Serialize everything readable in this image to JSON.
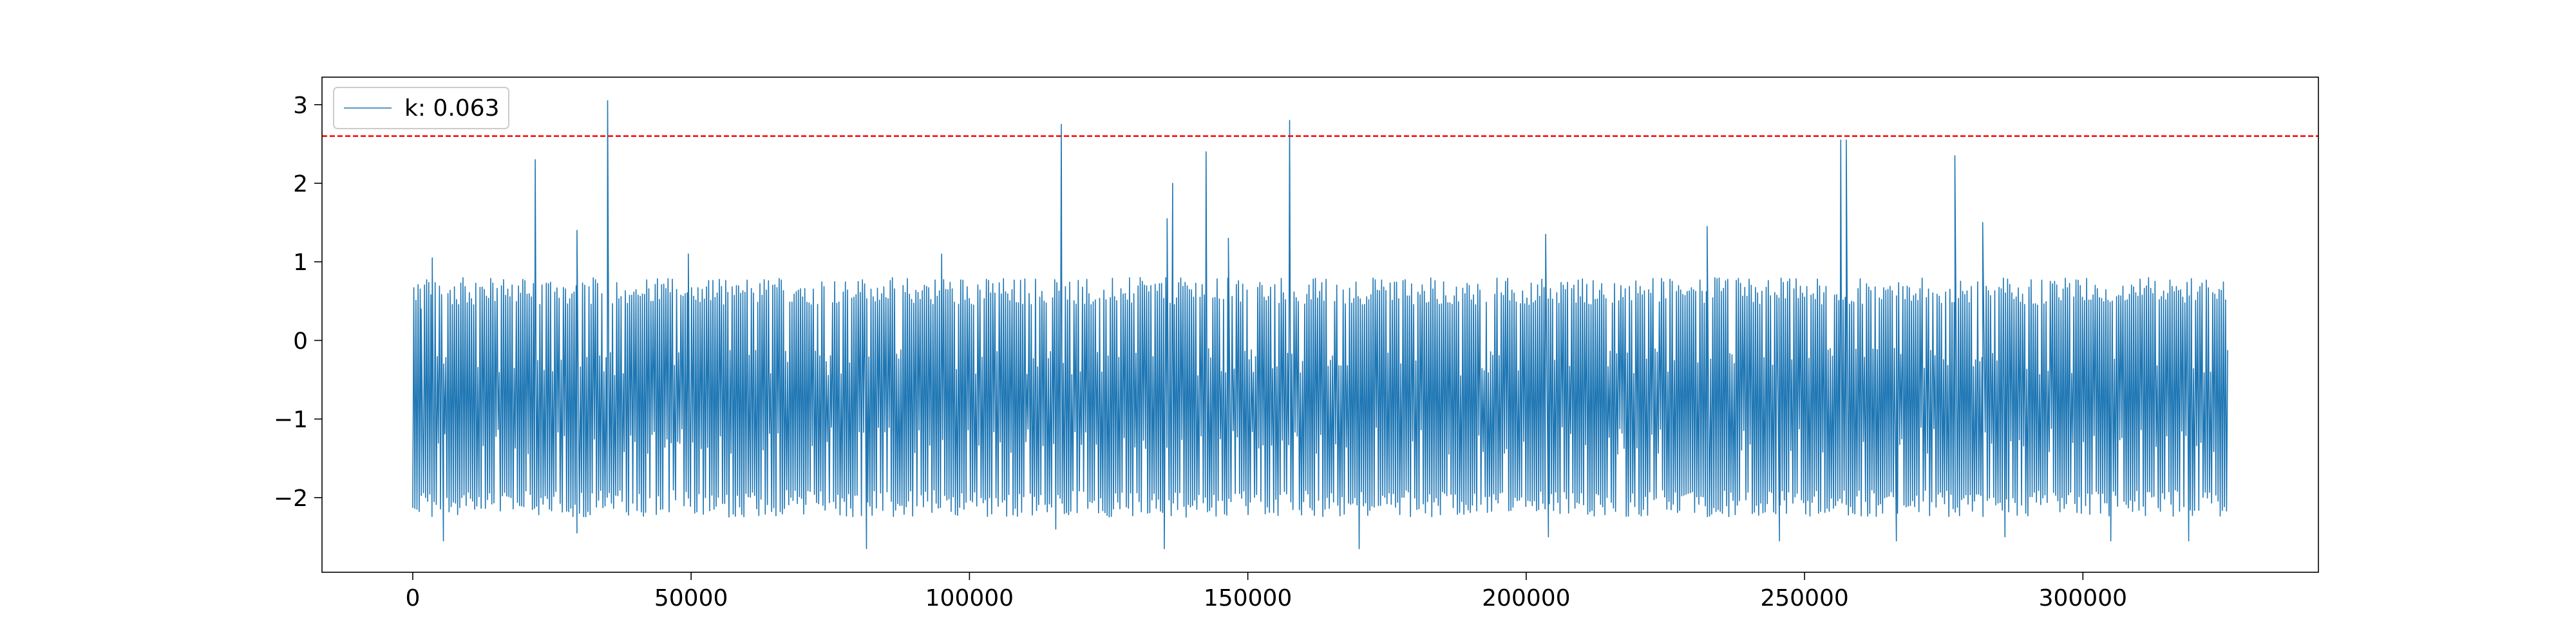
{
  "chart_data": {
    "type": "line",
    "title": "",
    "xlabel": "",
    "ylabel": "",
    "xlim": [
      -16300,
      342300
    ],
    "ylim": [
      -2.95,
      3.35
    ],
    "x_range": [
      0,
      326000
    ],
    "n_points": 1700,
    "grid": false,
    "legend_position": "top-left",
    "x_ticks": [
      {
        "value": 0,
        "label": "0"
      },
      {
        "value": 50000,
        "label": "50000"
      },
      {
        "value": 100000,
        "label": "100000"
      },
      {
        "value": 150000,
        "label": "150000"
      },
      {
        "value": 200000,
        "label": "200000"
      },
      {
        "value": 250000,
        "label": "250000"
      },
      {
        "value": 300000,
        "label": "300000"
      }
    ],
    "y_ticks": [
      {
        "value": 3,
        "label": "3"
      },
      {
        "value": 2,
        "label": "2"
      },
      {
        "value": 1,
        "label": "1"
      },
      {
        "value": 0,
        "label": "0"
      },
      {
        "value": -1,
        "label": "−1"
      },
      {
        "value": -2,
        "label": "−2"
      }
    ],
    "series": [
      {
        "name": "k: 0.063",
        "color": "#1f77b4",
        "baseline_low": -1.9,
        "baseline_high": 0.45,
        "peaks": [
          {
            "x": 1500,
            "y": 0.4
          },
          {
            "x": 3500,
            "y": 1.05
          },
          {
            "x": 22000,
            "y": 2.3
          },
          {
            "x": 29500,
            "y": 1.4
          },
          {
            "x": 35000,
            "y": 3.05
          },
          {
            "x": 49500,
            "y": 1.1
          },
          {
            "x": 95000,
            "y": 1.1
          },
          {
            "x": 116500,
            "y": 2.75
          },
          {
            "x": 135500,
            "y": 1.55
          },
          {
            "x": 136500,
            "y": 2.0
          },
          {
            "x": 142500,
            "y": 2.4
          },
          {
            "x": 146500,
            "y": 1.3
          },
          {
            "x": 157500,
            "y": 2.8
          },
          {
            "x": 203500,
            "y": 1.35
          },
          {
            "x": 232500,
            "y": 1.45
          },
          {
            "x": 256500,
            "y": 2.55
          },
          {
            "x": 257500,
            "y": 2.55
          },
          {
            "x": 277000,
            "y": 2.35
          },
          {
            "x": 282000,
            "y": 1.5
          }
        ],
        "troughs": [
          {
            "x": 5500,
            "y": -2.55
          },
          {
            "x": 29500,
            "y": -2.45
          },
          {
            "x": 81500,
            "y": -2.65
          },
          {
            "x": 115500,
            "y": -2.4
          },
          {
            "x": 135000,
            "y": -2.65
          },
          {
            "x": 170000,
            "y": -2.65
          },
          {
            "x": 204000,
            "y": -2.5
          },
          {
            "x": 245500,
            "y": -2.55
          },
          {
            "x": 266500,
            "y": -2.55
          },
          {
            "x": 286000,
            "y": -2.5
          },
          {
            "x": 305000,
            "y": -2.55
          },
          {
            "x": 319000,
            "y": -2.55
          }
        ]
      }
    ],
    "threshold": {
      "y": 2.6,
      "color": "#ff0000",
      "style": "dashed"
    }
  }
}
